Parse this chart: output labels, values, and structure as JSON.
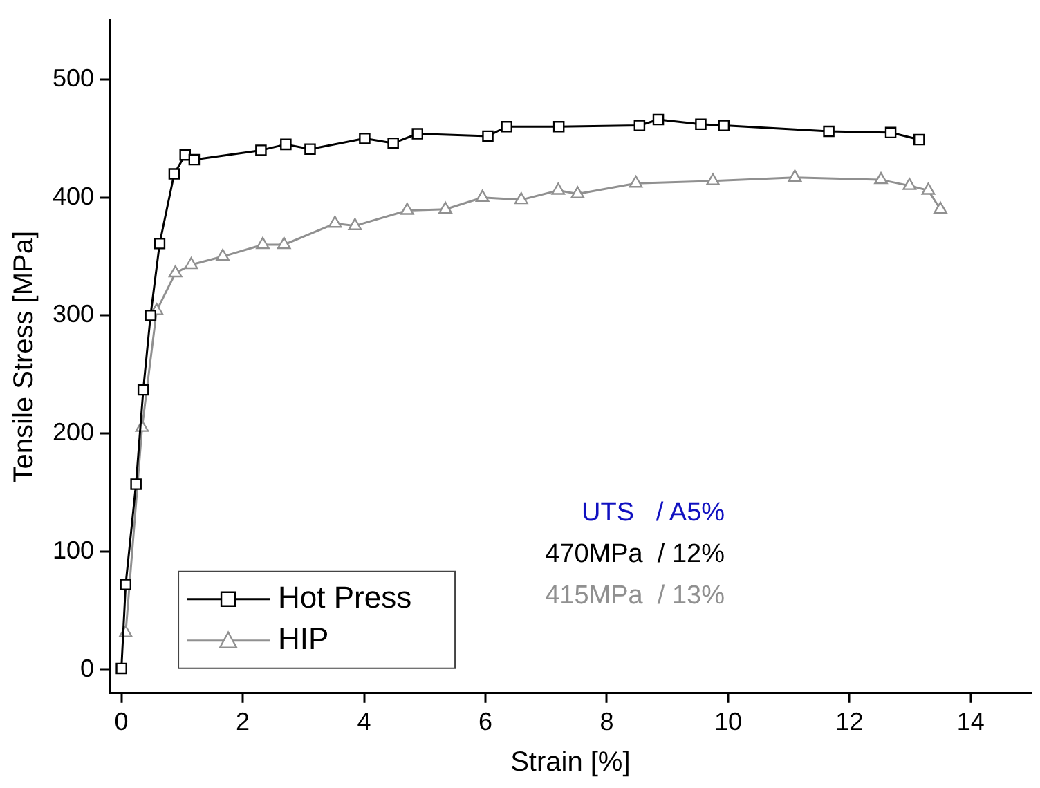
{
  "chart_data": {
    "type": "line",
    "xlabel": "Strain [%]",
    "ylabel": "Tensile Stress [MPa]",
    "xlim": [
      -0.2,
      15
    ],
    "ylim": [
      -20,
      550
    ],
    "xticks": [
      0,
      2,
      4,
      6,
      8,
      10,
      12,
      14
    ],
    "yticks": [
      0,
      100,
      200,
      300,
      400,
      500
    ],
    "grid": false,
    "legend": "bottom left",
    "line_style": "solid",
    "series": [
      {
        "name": "Hot Press",
        "color": "#000000",
        "marker": "square",
        "x": [
          0,
          0.07,
          0.24,
          0.36,
          0.48,
          0.63,
          0.87,
          1.05,
          1.2,
          2.3,
          2.71,
          3.11,
          4.01,
          4.48,
          4.88,
          6.04,
          6.35,
          7.21,
          8.54,
          8.85,
          9.55,
          9.93,
          11.66,
          12.68,
          13.15
        ],
        "values": [
          1,
          72,
          157,
          237,
          300,
          361,
          420,
          436,
          432,
          440,
          445,
          441,
          450,
          446,
          454,
          452,
          460,
          460,
          461,
          466,
          462,
          461,
          456,
          455,
          449
        ]
      },
      {
        "name": "HIP",
        "color": "#909090",
        "marker": "triangle",
        "x": [
          0.07,
          0.34,
          0.58,
          0.89,
          1.15,
          1.67,
          2.33,
          2.68,
          3.52,
          3.85,
          4.71,
          5.34,
          5.95,
          6.59,
          7.2,
          7.52,
          8.48,
          9.75,
          11.1,
          12.52,
          12.99,
          13.3,
          13.5
        ],
        "values": [
          31,
          205,
          304,
          336,
          343,
          350,
          360,
          360,
          378,
          376,
          389,
          390,
          400,
          398,
          406,
          403,
          412,
          414,
          417,
          415,
          410,
          406,
          390
        ]
      }
    ],
    "annotations": [
      "UTS   / A5%",
      "470MPa  / 12%",
      "415MPa  / 13%"
    ]
  }
}
